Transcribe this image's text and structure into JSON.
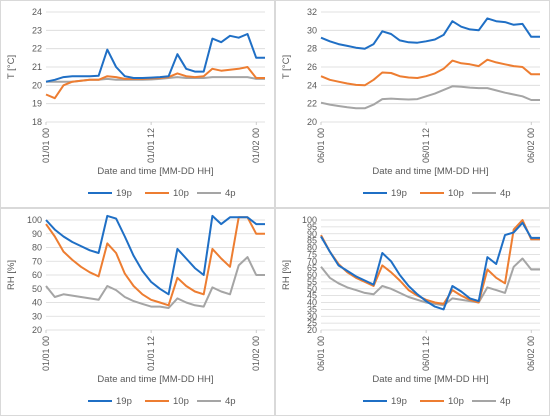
{
  "colors": {
    "19p": "#1f6fc5",
    "10p": "#ed7d31",
    "4p": "#a5a5a5",
    "grid": "#d9d9d9"
  },
  "chart_data": [
    {
      "type": "line",
      "panel": "top-left",
      "xlabel": "Date and time [MM-DD HH]",
      "ylabel": "T [°C]",
      "ylim": [
        18,
        24
      ],
      "yticks": [
        "18",
        "19",
        "20",
        "21",
        "22",
        "23",
        "24"
      ],
      "xticks": [
        {
          "label": "01/01 00",
          "at": 0
        },
        {
          "label": "01/01 12",
          "at": 12
        },
        {
          "label": "01/02 00",
          "at": 24
        }
      ],
      "xlim": [
        0,
        25
      ],
      "grid": true,
      "legend": "bottom",
      "series": [
        {
          "name": "19p",
          "key": "19p",
          "x": [
            0,
            1,
            2,
            3,
            4,
            5,
            6,
            7,
            8,
            9,
            10,
            11,
            12,
            13,
            14,
            15,
            16,
            17,
            18,
            19,
            20,
            21,
            22,
            23,
            24,
            25
          ],
          "values": [
            20.2,
            20.3,
            20.45,
            20.5,
            20.5,
            20.5,
            20.52,
            21.95,
            21.0,
            20.5,
            20.4,
            20.4,
            20.42,
            20.45,
            20.5,
            21.7,
            20.9,
            20.75,
            20.75,
            22.55,
            22.35,
            22.7,
            22.6,
            22.8,
            21.5,
            21.5
          ]
        },
        {
          "name": "10p",
          "key": "10p",
          "x": [
            0,
            1,
            2,
            3,
            4,
            5,
            6,
            7,
            8,
            9,
            10,
            11,
            12,
            13,
            14,
            15,
            16,
            17,
            18,
            19,
            20,
            21,
            22,
            23,
            24,
            25
          ],
          "values": [
            19.5,
            19.3,
            20.0,
            20.2,
            20.25,
            20.3,
            20.3,
            20.5,
            20.45,
            20.35,
            20.35,
            20.35,
            20.38,
            20.4,
            20.45,
            20.65,
            20.5,
            20.45,
            20.5,
            20.9,
            20.8,
            20.85,
            20.9,
            21.0,
            20.4,
            20.4
          ]
        },
        {
          "name": "4p",
          "key": "4p",
          "x": [
            0,
            1,
            2,
            3,
            4,
            5,
            6,
            7,
            8,
            9,
            10,
            11,
            12,
            13,
            14,
            15,
            16,
            17,
            18,
            19,
            20,
            21,
            22,
            23,
            24,
            25
          ],
          "values": [
            20.2,
            20.2,
            20.2,
            20.2,
            20.25,
            20.3,
            20.3,
            20.35,
            20.3,
            20.3,
            20.3,
            20.3,
            20.32,
            20.35,
            20.4,
            20.45,
            20.4,
            20.4,
            20.4,
            20.45,
            20.45,
            20.45,
            20.45,
            20.45,
            20.35,
            20.35
          ]
        }
      ]
    },
    {
      "type": "line",
      "panel": "top-right",
      "xlabel": "Date and time [MM-DD HH]",
      "ylabel": "T [°C]",
      "ylim": [
        20,
        32
      ],
      "yticks": [
        "20",
        "22",
        "24",
        "26",
        "28",
        "30",
        "32"
      ],
      "xticks": [
        {
          "label": "06/01 00",
          "at": 0
        },
        {
          "label": "06/01 12",
          "at": 12
        },
        {
          "label": "06/02 00",
          "at": 24
        }
      ],
      "xlim": [
        0,
        25
      ],
      "grid": true,
      "legend": "bottom",
      "series": [
        {
          "name": "19p",
          "key": "19p",
          "x": [
            0,
            1,
            2,
            3,
            4,
            5,
            6,
            7,
            8,
            9,
            10,
            11,
            12,
            13,
            14,
            15,
            16,
            17,
            18,
            19,
            20,
            21,
            22,
            23,
            24,
            25
          ],
          "values": [
            29.2,
            28.8,
            28.5,
            28.3,
            28.1,
            28.0,
            28.5,
            29.9,
            29.6,
            28.9,
            28.7,
            28.65,
            28.8,
            29.0,
            29.5,
            31.0,
            30.4,
            30.1,
            30.0,
            31.3,
            31.0,
            30.9,
            30.6,
            30.7,
            29.3,
            29.3
          ]
        },
        {
          "name": "10p",
          "key": "10p",
          "x": [
            0,
            1,
            2,
            3,
            4,
            5,
            6,
            7,
            8,
            9,
            10,
            11,
            12,
            13,
            14,
            15,
            16,
            17,
            18,
            19,
            20,
            21,
            22,
            23,
            24,
            25
          ],
          "values": [
            25.0,
            24.6,
            24.4,
            24.2,
            24.05,
            24.0,
            24.6,
            25.4,
            25.35,
            25.0,
            24.85,
            24.8,
            25.0,
            25.3,
            25.8,
            26.7,
            26.4,
            26.3,
            26.1,
            26.8,
            26.5,
            26.3,
            26.1,
            26.0,
            25.2,
            25.2
          ]
        },
        {
          "name": "4p",
          "key": "4p",
          "x": [
            0,
            1,
            2,
            3,
            4,
            5,
            6,
            7,
            8,
            9,
            10,
            11,
            12,
            13,
            14,
            15,
            16,
            17,
            18,
            19,
            20,
            21,
            22,
            23,
            24,
            25
          ],
          "values": [
            22.1,
            21.9,
            21.75,
            21.6,
            21.5,
            21.5,
            21.9,
            22.5,
            22.55,
            22.5,
            22.45,
            22.5,
            22.8,
            23.1,
            23.5,
            23.9,
            23.85,
            23.75,
            23.7,
            23.7,
            23.45,
            23.2,
            23.0,
            22.8,
            22.4,
            22.4
          ]
        }
      ]
    },
    {
      "type": "line",
      "panel": "bottom-left",
      "xlabel": "Date and time [MM-DD HH]",
      "ylabel": "RH [%]",
      "ylim": [
        20,
        100
      ],
      "yticks": [
        "20",
        "30",
        "40",
        "50",
        "60",
        "70",
        "80",
        "90",
        "100"
      ],
      "xticks": [
        {
          "label": "01/01 00",
          "at": 0
        },
        {
          "label": "01/01 12",
          "at": 12
        },
        {
          "label": "01/02 00",
          "at": 24
        }
      ],
      "xlim": [
        0,
        25
      ],
      "grid": true,
      "legend": "bottom",
      "series": [
        {
          "name": "19p",
          "key": "19p",
          "x": [
            0,
            1,
            2,
            3,
            4,
            5,
            6,
            7,
            8,
            9,
            10,
            11,
            12,
            13,
            14,
            15,
            16,
            17,
            18,
            19,
            20,
            21,
            22,
            23,
            24,
            25
          ],
          "values": [
            100,
            93,
            88,
            84,
            81,
            78,
            76,
            103,
            101,
            88,
            74,
            63,
            55,
            50,
            46,
            79,
            72,
            65,
            60,
            103,
            97,
            102,
            102,
            102,
            97,
            97
          ]
        },
        {
          "name": "10p",
          "key": "10p",
          "x": [
            0,
            1,
            2,
            3,
            4,
            5,
            6,
            7,
            8,
            9,
            10,
            11,
            12,
            13,
            14,
            15,
            16,
            17,
            18,
            19,
            20,
            21,
            22,
            23,
            24,
            25
          ],
          "values": [
            97,
            88,
            77,
            71,
            66,
            62,
            59,
            83,
            76,
            61,
            52,
            46,
            42,
            40,
            38,
            58,
            52,
            48,
            46,
            79,
            72,
            66,
            102,
            102,
            90,
            90
          ]
        },
        {
          "name": "4p",
          "key": "4p",
          "x": [
            0,
            1,
            2,
            3,
            4,
            5,
            6,
            7,
            8,
            9,
            10,
            11,
            12,
            13,
            14,
            15,
            16,
            17,
            18,
            19,
            20,
            21,
            22,
            23,
            24,
            25
          ],
          "values": [
            52,
            44,
            46,
            45,
            44,
            43,
            42,
            52,
            49,
            44,
            41,
            39,
            37,
            37,
            36,
            43,
            40,
            38,
            37,
            51,
            48,
            46,
            67,
            73,
            60,
            60
          ]
        }
      ]
    },
    {
      "type": "line",
      "panel": "bottom-right",
      "xlabel": "Date and time [MM-DD HH]",
      "ylabel": "RH [%]",
      "ylim": [
        20,
        100
      ],
      "yticks": [
        "20",
        "25",
        "30",
        "35",
        "40",
        "45",
        "50",
        "55",
        "60",
        "65",
        "70",
        "75",
        "80",
        "85",
        "90",
        "95",
        "100"
      ],
      "xticks": [
        {
          "label": "06/01 00",
          "at": 0
        },
        {
          "label": "06/01 12",
          "at": 12
        },
        {
          "label": "06/02 00",
          "at": 24
        }
      ],
      "xlim": [
        0,
        25
      ],
      "grid": true,
      "legend": "bottom",
      "series": [
        {
          "name": "19p",
          "key": "19p",
          "x": [
            0,
            1,
            2,
            3,
            4,
            5,
            6,
            7,
            8,
            9,
            10,
            11,
            12,
            13,
            14,
            15,
            16,
            17,
            18,
            19,
            20,
            21,
            22,
            23,
            24,
            25
          ],
          "values": [
            88,
            77,
            67,
            63,
            59,
            56,
            53,
            76,
            70,
            60,
            52,
            46,
            41,
            37,
            35,
            52,
            48,
            43,
            41,
            73,
            68,
            89,
            91,
            98,
            87,
            87
          ]
        },
        {
          "name": "10p",
          "key": "10p",
          "x": [
            0,
            1,
            2,
            3,
            4,
            5,
            6,
            7,
            8,
            9,
            10,
            11,
            12,
            13,
            14,
            15,
            16,
            17,
            18,
            19,
            20,
            21,
            22,
            23,
            24,
            25
          ],
          "values": [
            89,
            77,
            68,
            62,
            58,
            55,
            52,
            67,
            62,
            56,
            49,
            45,
            42,
            40,
            39,
            49,
            45,
            42,
            40,
            64,
            58,
            54,
            93,
            100,
            86,
            86
          ]
        },
        {
          "name": "4p",
          "key": "4p",
          "x": [
            0,
            1,
            2,
            3,
            4,
            5,
            6,
            7,
            8,
            9,
            10,
            11,
            12,
            13,
            14,
            15,
            16,
            17,
            18,
            19,
            20,
            21,
            22,
            23,
            24,
            25
          ],
          "values": [
            66,
            58,
            54,
            51,
            49,
            47,
            46,
            52,
            50,
            47,
            44,
            42,
            40,
            39,
            38,
            43,
            42,
            41,
            40,
            51,
            49,
            47,
            66,
            72,
            64,
            64
          ]
        }
      ]
    }
  ]
}
